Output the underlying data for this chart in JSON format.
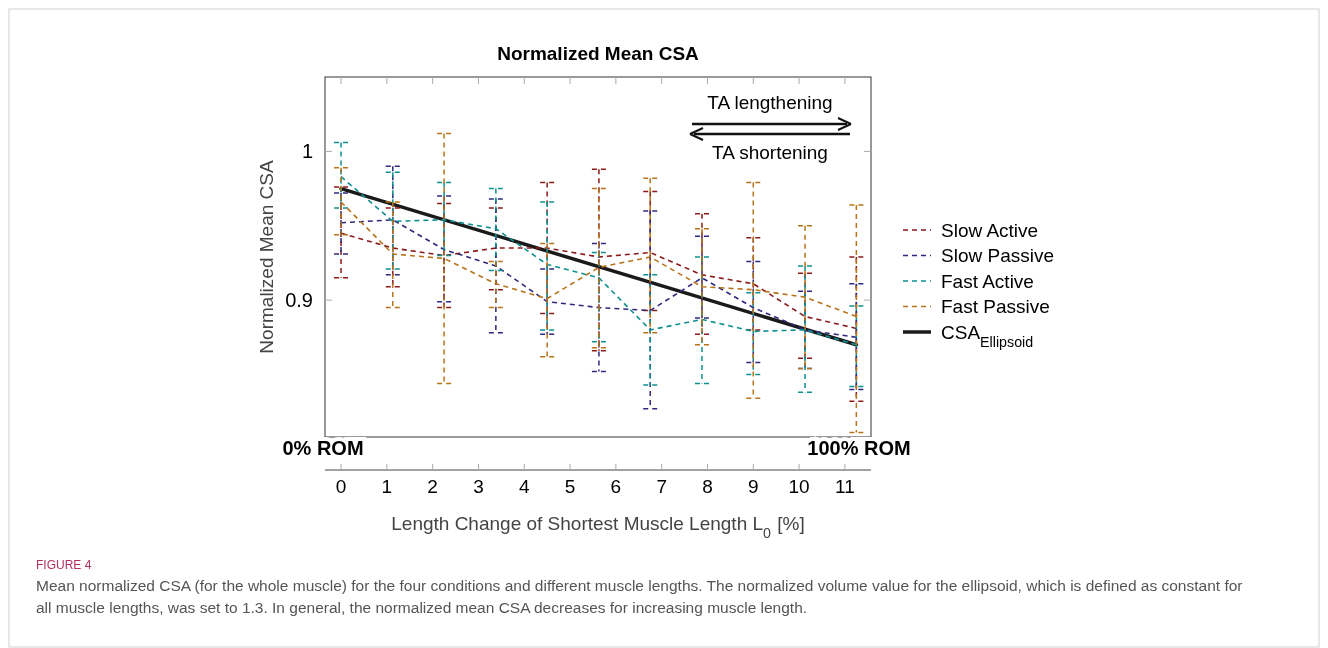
{
  "chart_data": {
    "type": "line",
    "title": "Normalized Mean CSA",
    "xlabel": "Length Change of Shortest Muscle Length L$_{0}$ [%]",
    "ylabel": "Normalized Mean CSA",
    "xlim": [
      -0.35,
      11.57
    ],
    "ylim": [
      0.808,
      1.05
    ],
    "xticks": [
      0,
      1,
      2,
      3,
      4,
      5,
      6,
      7,
      8,
      9,
      10,
      11
    ],
    "yticks": [
      0.9,
      1
    ],
    "grid": false,
    "legend": "right",
    "marker": "none",
    "series": [
      {
        "name": "Slow Active",
        "color": "#8b1a1a",
        "line_style": "dashed",
        "x": [
          0,
          1.13,
          2.25,
          3.38,
          4.5,
          5.63,
          6.75,
          7.88,
          9,
          10.13,
          11.25
        ],
        "values": [
          0.945,
          0.935,
          0.93,
          0.935,
          0.935,
          0.929,
          0.932,
          0.917,
          0.911,
          0.889,
          0.881
        ],
        "errors": [
          [
            0.915,
            0.976
          ],
          [
            0.909,
            0.962
          ],
          [
            0.895,
            0.965
          ],
          [
            0.907,
            0.962
          ],
          [
            0.891,
            0.979
          ],
          [
            0.866,
            0.988
          ],
          [
            0.893,
            0.973
          ],
          [
            0.877,
            0.958
          ],
          [
            0.88,
            0.942
          ],
          [
            0.861,
            0.918
          ],
          [
            0.832,
            0.929
          ]
        ]
      },
      {
        "name": "Slow Passive",
        "color": "#2e2a7f",
        "line_style": "dashed",
        "x": [
          0,
          1.13,
          2.25,
          3.38,
          4.5,
          5.63,
          6.75,
          7.88,
          9,
          10.13,
          11.25
        ],
        "values": [
          0.952,
          0.954,
          0.934,
          0.923,
          0.899,
          0.895,
          0.893,
          0.915,
          0.895,
          0.88,
          0.875
        ],
        "errors": [
          [
            0.931,
            0.972
          ],
          [
            0.917,
            0.99
          ],
          [
            0.899,
            0.97
          ],
          [
            0.878,
            0.968
          ],
          [
            0.877,
            0.921
          ],
          [
            0.852,
            0.938
          ],
          [
            0.827,
            0.96
          ],
          [
            0.888,
            0.943
          ],
          [
            0.858,
            0.926
          ],
          [
            0.854,
            0.906
          ],
          [
            0.84,
            0.911
          ]
        ]
      },
      {
        "name": "Fast Active",
        "color": "#0e9090",
        "line_style": "dashed",
        "x": [
          0,
          1.13,
          2.25,
          3.38,
          4.5,
          5.63,
          6.75,
          7.88,
          9,
          10.13,
          11.25
        ],
        "values": [
          0.983,
          0.953,
          0.954,
          0.948,
          0.924,
          0.915,
          0.88,
          0.887,
          0.879,
          0.88,
          0.87
        ],
        "errors": [
          [
            0.962,
            1.006
          ],
          [
            0.921,
            0.986
          ],
          [
            0.93,
            0.979
          ],
          [
            0.92,
            0.975
          ],
          [
            0.88,
            0.966
          ],
          [
            0.872,
            0.932
          ],
          [
            0.843,
            0.917
          ],
          [
            0.844,
            0.929
          ],
          [
            0.85,
            0.905
          ],
          [
            0.838,
            0.923
          ],
          [
            0.842,
            0.896
          ]
        ]
      },
      {
        "name": "Fast Passive",
        "color": "#b8741a",
        "line_style": "dashed",
        "x": [
          0,
          1.13,
          2.25,
          3.38,
          4.5,
          5.63,
          6.75,
          7.88,
          9,
          10.13,
          11.25
        ],
        "values": [
          0.966,
          0.931,
          0.928,
          0.911,
          0.901,
          0.922,
          0.929,
          0.909,
          0.907,
          0.902,
          0.889
        ],
        "errors": [
          [
            0.944,
            0.989
          ],
          [
            0.895,
            0.966
          ],
          [
            0.844,
            1.012
          ],
          [
            0.895,
            0.926
          ],
          [
            0.862,
            0.938
          ],
          [
            0.868,
            0.975
          ],
          [
            0.878,
            0.982
          ],
          [
            0.87,
            0.948
          ],
          [
            0.834,
            0.979
          ],
          [
            0.854,
            0.95
          ],
          [
            0.811,
            0.964
          ]
        ]
      },
      {
        "name": "CSA$_{Ellipsoid}$",
        "color": "#1a1a1a",
        "line_style": "solid",
        "x": [
          0,
          11.25
        ],
        "values": [
          0.975,
          0.87
        ]
      }
    ],
    "annotations": [
      "TA lengthening",
      "TA shortening",
      "0% ROM",
      "100% ROM",
      "FIGURE 4",
      "Mean normalized CSA (for the whole muscle) for the four conditions and different muscle lengths. The normalized volume value for the ellipsoid, which is defined as constant for all muscle lengths, was set to 1.3. In general, the normalized mean CSA decreases for increasing muscle length."
    ]
  }
}
